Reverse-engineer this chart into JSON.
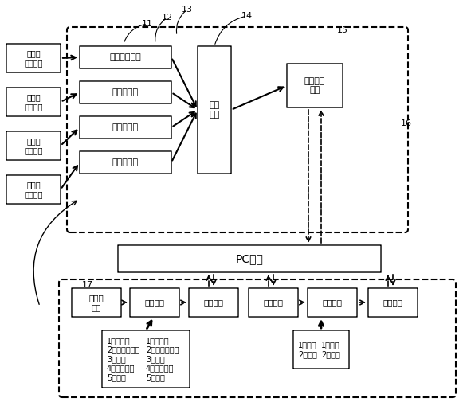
{
  "bg_color": "#ffffff",
  "box_color": "#ffffff",
  "box_edge": "#000000",
  "dashed_box_color": "#ffffff",
  "text_color": "#000000",
  "input_signals": [
    "曳引机\n振动信号",
    "曳引机\n温度信号",
    "曳引机\n转动信号",
    "曳引机\n电流信号"
  ],
  "sensors": [
    "加速度传感器",
    "温度传感器",
    "速度传感器",
    "电流传感器"
  ],
  "conditioner": "调理\n电路",
  "data_acq": "数据采集\n电路",
  "pc": "PC电脑",
  "bottom_boxes": [
    "分析后\n显示",
    "分析算法",
    "打开数据",
    "保存数据",
    "实时显示",
    "采集数据"
  ],
  "analysis_list": "1、功率谱\n2、功率谱密度\n3、倒谱\n4、小波变换\n5、包络",
  "display_list": "1、时域\n2、频域",
  "labels": {
    "11": "11",
    "12": "12",
    "13": "13",
    "14": "14",
    "15": "15",
    "16": "16",
    "17": "17"
  }
}
